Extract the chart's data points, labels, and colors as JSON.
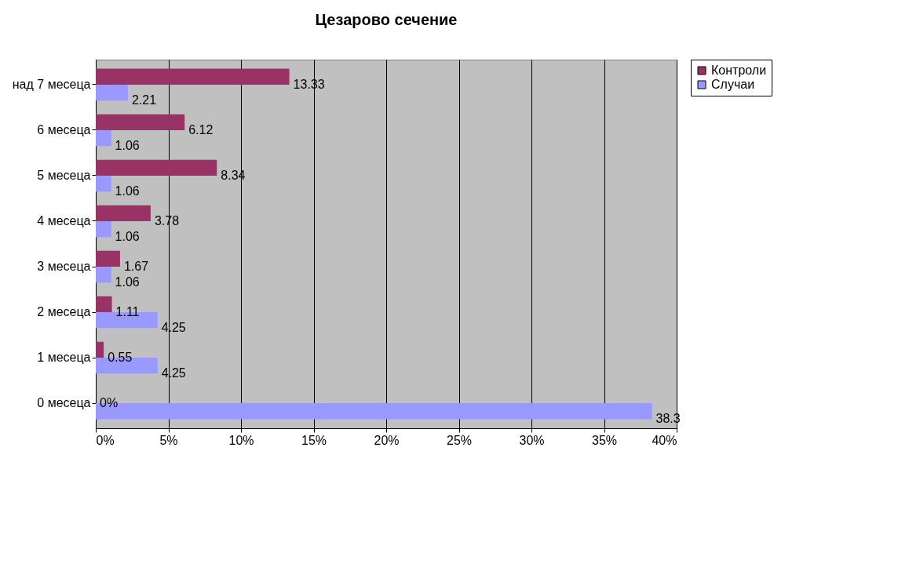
{
  "chart_data": {
    "type": "bar",
    "orientation": "horizontal",
    "title": "Цезарово сечение",
    "categories": [
      "над 7 месеца",
      "6 месеца",
      "5 месеца",
      "4 месеца",
      "3 месеца",
      "2 месеца",
      "1 месеца",
      "0 месеца"
    ],
    "series": [
      {
        "name": "Контроли",
        "color": "#993366",
        "values": [
          13.33,
          6.12,
          8.34,
          3.78,
          1.67,
          1.11,
          0.55,
          0
        ],
        "value_labels": [
          "13.33",
          "6.12",
          "8.34",
          "3.78",
          "1.67",
          "1.11",
          "0.55",
          "0%"
        ]
      },
      {
        "name": "Случаи",
        "color": "#9999ff",
        "values": [
          2.21,
          1.06,
          1.06,
          1.06,
          1.06,
          4.25,
          4.25,
          38.3
        ],
        "value_labels": [
          "2.21",
          "1.06",
          "1.06",
          "1.06",
          "1.06",
          "4.25",
          "4.25",
          "38.3"
        ]
      }
    ],
    "xlim": [
      0,
      40
    ],
    "xticks": [
      {
        "value": 0,
        "label": "0%"
      },
      {
        "value": 5,
        "label": "5%"
      },
      {
        "value": 10,
        "label": "10%"
      },
      {
        "value": 15,
        "label": "15%"
      },
      {
        "value": 20,
        "label": "20%"
      },
      {
        "value": 25,
        "label": "25%"
      },
      {
        "value": 30,
        "label": "30%"
      },
      {
        "value": 35,
        "label": "35%"
      },
      {
        "value": 40,
        "label": "40%"
      }
    ],
    "grid": "x",
    "legend": "right"
  }
}
